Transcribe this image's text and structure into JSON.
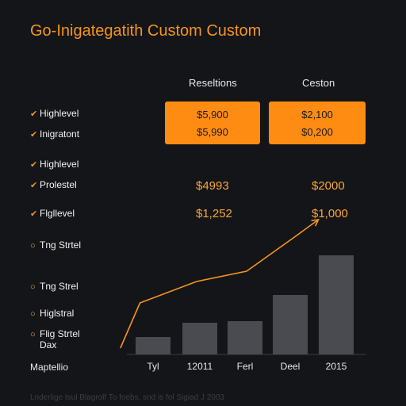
{
  "header": {
    "title": "Go-Inigategatith Custom Custom"
  },
  "columns": [
    {
      "label": "Reseltions"
    },
    {
      "label": "Ceston"
    }
  ],
  "cards": [
    {
      "top": "$5,900",
      "bottom": "$5,990"
    },
    {
      "top": "$2,100",
      "bottom": "$0,200"
    }
  ],
  "row_labels": [
    {
      "text": "Highlevel",
      "marker": "check"
    },
    {
      "text": "Inigratont",
      "marker": "check"
    },
    {
      "text": "Highlevel",
      "marker": "check"
    },
    {
      "text": "Prolestel",
      "marker": "check"
    },
    {
      "text": "Flgllevel",
      "marker": "check"
    },
    {
      "text": "Tng Strtel",
      "marker": "ring"
    },
    {
      "text": "Tng Strel",
      "marker": "ring"
    },
    {
      "text": "Higlstral",
      "marker": "ring"
    },
    {
      "text": "Flig Strtel",
      "marker": "ring"
    },
    {
      "text": "Dax",
      "marker": "none"
    }
  ],
  "metrics": {
    "left_upper": "$4993",
    "right_upper": "$2000",
    "left_lower": "$1,252",
    "right_lower": "$1,000"
  },
  "chart_data": {
    "type": "bar",
    "x_first_label": "Maptellio",
    "categories": [
      "Tyl",
      "12011",
      "Ferl",
      "Deel",
      "2015"
    ],
    "values": [
      22,
      40,
      42,
      75,
      125
    ],
    "ylim": [
      0,
      170
    ],
    "line": {
      "points": [
        {
          "x": 0,
          "y": 8
        },
        {
          "x": 0.45,
          "y": 65
        },
        {
          "x": 1.75,
          "y": 92
        },
        {
          "x": 2.9,
          "y": 105
        },
        {
          "x": 4.0,
          "y": 148
        },
        {
          "x": 4.55,
          "y": 170
        }
      ],
      "arrow": true
    },
    "bar_color": "#4a4b50",
    "line_color": "#f5951e",
    "grid": false
  },
  "footer": {
    "note": "Lnderlige Isul Blagrolf To foebs, snd is fol Sigiad J 2003"
  }
}
